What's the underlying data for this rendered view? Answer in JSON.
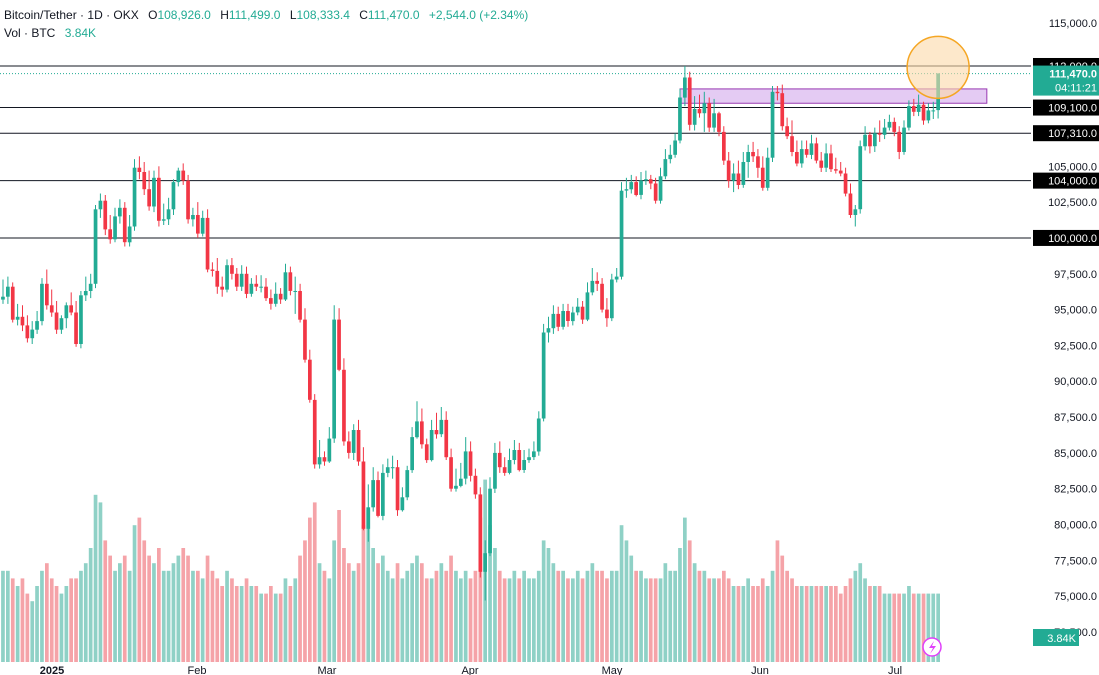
{
  "header": {
    "symbol": "Bitcoin/Tether",
    "interval": "1D",
    "exchange": "OKX",
    "open_label": "O",
    "open": "108,926.0",
    "high_label": "H",
    "high": "111,499.0",
    "low_label": "L",
    "low": "108,333.4",
    "close_label": "C",
    "close": "111,470.0",
    "change": "+2,544.0 (+2.34%)",
    "vol_label": "Vol · BTC",
    "vol_value": "3.84K",
    "separator": "·"
  },
  "colors": {
    "up": "#22ab94",
    "down": "#f23645",
    "vol_up": "#8fd1c6",
    "vol_down": "#f5a3a8",
    "zone_fill": "#e2c6f2",
    "zone_stroke": "#8e24aa",
    "highlight_fill": "#fcd9a8",
    "highlight_stroke": "#f5a623",
    "price_tag_bg": "#000000",
    "last_price_bg": "#22ab94"
  },
  "chart_data": {
    "type": "candlestick",
    "title": "Bitcoin/Tether · 1D · OKX",
    "x_axis_labels": [
      "2025",
      "Feb",
      "Mar",
      "Apr",
      "May",
      "Jun",
      "Jul"
    ],
    "y_ticks": [
      "115,000.0",
      "112,000.0",
      "109,100.0",
      "107,310.0",
      "105,000.0",
      "104,000.0",
      "102,500.0",
      "100,000.0",
      "97,500.0",
      "95,000.0",
      "92,500.0",
      "90,000.0",
      "87,500.0",
      "85,000.0",
      "82,500.0",
      "80,000.0",
      "77,500.0",
      "75,000.0",
      "72,500.0"
    ],
    "ylim": [
      72000,
      116500
    ],
    "horizontal_levels": [
      112000,
      109100,
      107310,
      104000,
      100000
    ],
    "level_labels": [
      "112,000.0",
      "109,100.0",
      "107,310.0",
      "104,000.0",
      "100,000.0"
    ],
    "current_price": 111470,
    "current_price_label": "111,470.0",
    "countdown": "04:11:21",
    "volume_badge": "3.84K",
    "resistance_zone": [
      109400,
      110400
    ],
    "close": [
      95900,
      96600,
      94300,
      94500,
      93900,
      93000,
      93600,
      94200,
      96800,
      95300,
      94800,
      93600,
      94400,
      95300,
      94800,
      92600,
      96000,
      96300,
      96800,
      102000,
      102600,
      100600,
      99900,
      101500,
      102100,
      99700,
      100800,
      104900,
      104600,
      103400,
      102200,
      104200,
      101200,
      101300,
      102000,
      103900,
      104700,
      104000,
      101300,
      101600,
      100300,
      101400,
      97800,
      97700,
      96600,
      96400,
      98100,
      97500,
      96600,
      97500,
      96100,
      96800,
      96600,
      96600,
      95800,
      95400,
      96100,
      95700,
      97600,
      96300,
      96300,
      94300,
      91500,
      88700,
      84200,
      84700,
      84400,
      86000,
      94300,
      90800,
      85800,
      85000,
      86600,
      84400,
      79700,
      81200,
      83100,
      80600,
      83600,
      84000,
      84000,
      81000,
      81900,
      83800,
      86100,
      87200,
      85600,
      84500,
      86600,
      86300,
      87300,
      84700,
      82500,
      82700,
      83200,
      85100,
      83400,
      82100,
      76700,
      78000,
      82500,
      85000,
      84000,
      83600,
      84500,
      85200,
      83800,
      84500,
      84700,
      85100,
      87400,
      93400,
      93700,
      94700,
      93800,
      94900,
      94200,
      94800,
      95200,
      94300,
      96200,
      97000,
      96800,
      95000,
      94400,
      97100,
      97300,
      103300,
      103400,
      103900,
      103000,
      104000,
      104100,
      103800,
      102600,
      104300,
      105500,
      105800,
      106800,
      109800,
      111200,
      107900,
      109000,
      108700,
      109400,
      107700,
      108700,
      107400,
      105400,
      104000,
      104500,
      103700,
      105300,
      106000,
      105700,
      104900,
      103500,
      105600,
      110200,
      110100,
      107800,
      107100,
      106000,
      105200,
      106200,
      105800,
      106600,
      105400,
      104900,
      105900,
      104800,
      104700,
      104500,
      103100,
      101600,
      102000,
      106400,
      107200,
      106400,
      107300,
      107200,
      107700,
      108100,
      107400,
      106000,
      107700,
      109200,
      108800,
      109300,
      108200,
      108900,
      108900,
      111470
    ],
    "open": [
      95700,
      95900,
      96600,
      94300,
      94500,
      93900,
      93000,
      93600,
      94200,
      96800,
      95300,
      94800,
      93600,
      94400,
      95300,
      94800,
      92600,
      96000,
      96300,
      96800,
      102000,
      102600,
      100600,
      99900,
      101500,
      102100,
      99700,
      100800,
      104900,
      104600,
      103400,
      102200,
      104200,
      101200,
      101300,
      102000,
      103900,
      104700,
      104000,
      101300,
      101600,
      100300,
      101400,
      97800,
      97700,
      96600,
      96400,
      98100,
      97500,
      96600,
      97500,
      96100,
      96800,
      96600,
      96600,
      95800,
      95400,
      96100,
      95700,
      97600,
      96300,
      96300,
      94300,
      91500,
      88700,
      84200,
      84700,
      84400,
      86000,
      94300,
      90800,
      85800,
      85000,
      86600,
      84400,
      79700,
      81200,
      83100,
      80600,
      83600,
      84000,
      84000,
      81000,
      81900,
      83800,
      86100,
      87200,
      85600,
      84500,
      86600,
      86300,
      87300,
      84700,
      82500,
      82700,
      83200,
      85100,
      83400,
      82100,
      76700,
      78000,
      82500,
      85000,
      84000,
      83600,
      84500,
      85200,
      83800,
      84500,
      84700,
      85100,
      87400,
      93400,
      93700,
      94700,
      93800,
      94900,
      94200,
      94800,
      95200,
      94300,
      96200,
      97000,
      96800,
      95000,
      94400,
      97100,
      97300,
      103300,
      103400,
      103900,
      103000,
      104000,
      104100,
      103800,
      102600,
      104300,
      105500,
      105800,
      106800,
      109800,
      111200,
      107900,
      109000,
      108700,
      109400,
      107700,
      108700,
      107400,
      105400,
      104000,
      104500,
      103700,
      105300,
      106000,
      105700,
      104900,
      103500,
      105600,
      110200,
      110100,
      107800,
      107100,
      106000,
      105200,
      106200,
      105800,
      106600,
      105400,
      104900,
      105900,
      104800,
      104700,
      104500,
      103100,
      101600,
      102000,
      106400,
      107200,
      106400,
      107300,
      107200,
      107700,
      108100,
      107400,
      106000,
      107700,
      109200,
      108800,
      109300,
      108200,
      108900,
      108926
    ],
    "high": [
      97100,
      97300,
      96900,
      95400,
      95300,
      94600,
      94200,
      94900,
      97200,
      97800,
      96400,
      95600,
      94600,
      95500,
      96200,
      95600,
      96300,
      97300,
      97500,
      102300,
      103100,
      103000,
      101600,
      102100,
      102700,
      102500,
      101600,
      105500,
      105700,
      105300,
      104700,
      104700,
      105000,
      102400,
      102800,
      104100,
      104900,
      105200,
      104400,
      102100,
      102500,
      101900,
      102000,
      98300,
      98600,
      97300,
      98500,
      98600,
      97900,
      98100,
      98000,
      97200,
      97400,
      97400,
      97200,
      96400,
      96900,
      96500,
      98200,
      98000,
      97300,
      96800,
      95100,
      92200,
      89100,
      85900,
      85100,
      86800,
      95300,
      95100,
      91600,
      86500,
      87000,
      87300,
      85400,
      82800,
      84000,
      83700,
      84200,
      84600,
      84800,
      84500,
      82600,
      84100,
      86800,
      88600,
      88100,
      86000,
      87300,
      87800,
      88200,
      87900,
      85300,
      83900,
      84300,
      86100,
      85800,
      83900,
      82600,
      78900,
      83300,
      85700,
      85800,
      84700,
      85300,
      85900,
      85700,
      85200,
      85300,
      85800,
      87900,
      94000,
      94500,
      95300,
      95200,
      95400,
      95400,
      95200,
      95800,
      95600,
      96900,
      97900,
      97600,
      97200,
      95800,
      97500,
      97900,
      103900,
      104200,
      104400,
      104300,
      104600,
      104700,
      104400,
      104200,
      104900,
      106200,
      106500,
      107300,
      110400,
      112000,
      111600,
      109900,
      110000,
      110200,
      109800,
      109700,
      108800,
      107800,
      106000,
      105200,
      105400,
      106000,
      106500,
      106700,
      106200,
      105700,
      106300,
      110600,
      110600,
      110700,
      108400,
      108200,
      106800,
      106800,
      106800,
      107200,
      107000,
      106000,
      106600,
      106500,
      105600,
      105300,
      104900,
      103800,
      102300,
      106800,
      107800,
      107400,
      107700,
      108200,
      108300,
      108600,
      108400,
      107800,
      108200,
      109600,
      109700,
      110000,
      109500,
      109400,
      109500,
      111499
    ],
    "low": [
      95400,
      95400,
      94100,
      93900,
      93500,
      92700,
      92600,
      93300,
      93900,
      95000,
      94500,
      93300,
      93300,
      93700,
      94600,
      92400,
      92300,
      95600,
      95800,
      96500,
      101400,
      100200,
      99600,
      99700,
      101000,
      99400,
      99400,
      100500,
      104100,
      103000,
      101900,
      101800,
      100800,
      100900,
      100900,
      101600,
      103600,
      103700,
      101000,
      100800,
      100000,
      100100,
      97600,
      97300,
      96100,
      95900,
      96200,
      97100,
      96300,
      96300,
      95800,
      95900,
      96300,
      96200,
      95600,
      95000,
      95200,
      95400,
      95600,
      96000,
      94700,
      94100,
      91300,
      88500,
      83900,
      83900,
      84100,
      84300,
      85700,
      90700,
      85500,
      84600,
      84500,
      84100,
      79600,
      78800,
      80900,
      80500,
      80300,
      83300,
      83200,
      80600,
      80900,
      81700,
      83600,
      86000,
      85300,
      84300,
      84400,
      86000,
      86100,
      84500,
      82300,
      82300,
      82600,
      82800,
      83000,
      81800,
      76300,
      74700,
      77800,
      82200,
      83600,
      83400,
      83500,
      84200,
      83700,
      83600,
      84300,
      84500,
      84800,
      87200,
      92700,
      93300,
      93500,
      93600,
      93800,
      93900,
      94600,
      94000,
      94200,
      96000,
      96300,
      94800,
      93800,
      94200,
      96900,
      97100,
      102800,
      103100,
      102900,
      102700,
      103700,
      103400,
      102400,
      102400,
      104100,
      105200,
      105600,
      106600,
      109200,
      107500,
      107500,
      108400,
      107400,
      107400,
      107400,
      107100,
      105100,
      103500,
      103200,
      103400,
      103500,
      104200,
      105300,
      104200,
      103300,
      103300,
      105300,
      109600,
      107500,
      106900,
      105700,
      105000,
      104900,
      105600,
      105500,
      105200,
      104600,
      104600,
      104600,
      104500,
      104300,
      102900,
      101400,
      100800,
      101700,
      106100,
      105900,
      106000,
      106700,
      106900,
      107500,
      107100,
      105500,
      105800,
      107500,
      108500,
      108500,
      107900,
      108000,
      108300,
      108333
    ],
    "volume": [
      12,
      12,
      11,
      10,
      11,
      9,
      8,
      10,
      12,
      13,
      11,
      10,
      9,
      10,
      11,
      11,
      12,
      13,
      15,
      22,
      21,
      16,
      14,
      12,
      13,
      14,
      12,
      18,
      19,
      16,
      14,
      13,
      15,
      12,
      12,
      13,
      14,
      15,
      14,
      12,
      12,
      11,
      14,
      12,
      11,
      10,
      12,
      11,
      10,
      10,
      11,
      10,
      10,
      9,
      9,
      10,
      9,
      9,
      11,
      10,
      11,
      14,
      16,
      19,
      21,
      13,
      12,
      11,
      16,
      20,
      15,
      13,
      12,
      13,
      18,
      20,
      15,
      13,
      14,
      12,
      11,
      13,
      11,
      12,
      13,
      14,
      13,
      11,
      11,
      12,
      13,
      12,
      14,
      12,
      11,
      12,
      11,
      12,
      19,
      24,
      18,
      15,
      12,
      11,
      11,
      12,
      11,
      12,
      11,
      11,
      12,
      16,
      15,
      13,
      12,
      12,
      11,
      11,
      12,
      11,
      12,
      13,
      12,
      12,
      11,
      12,
      12,
      18,
      16,
      14,
      12,
      12,
      11,
      11,
      11,
      11,
      13,
      12,
      12,
      15,
      19,
      16,
      13,
      12,
      12,
      11,
      11,
      11,
      12,
      11,
      10,
      10,
      10,
      11,
      10,
      10,
      11,
      10,
      12,
      16,
      14,
      12,
      11,
      10,
      10,
      10,
      10,
      10,
      10,
      10,
      10,
      10,
      9,
      10,
      11,
      12,
      13,
      11,
      10,
      10,
      10,
      9,
      9,
      9,
      9,
      9,
      10,
      9,
      9,
      9,
      9,
      9,
      9
    ]
  }
}
